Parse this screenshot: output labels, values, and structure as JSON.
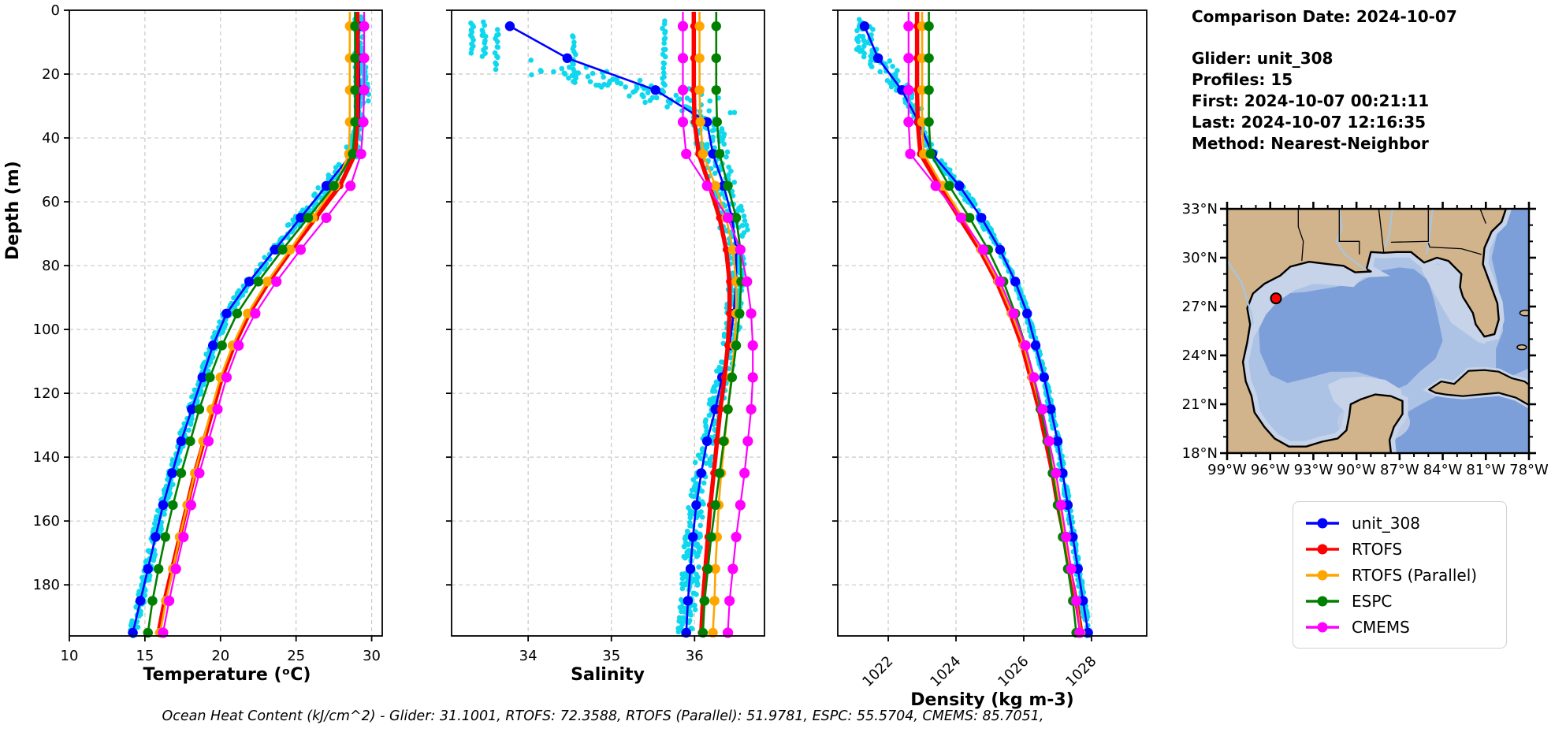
{
  "info": {
    "comparison_date": "Comparison Date: 2024-10-07",
    "lines": [
      "Glider: unit_308",
      "Profiles: 15",
      "First: 2024-10-07 00:21:11",
      "Last: 2024-10-07 12:16:35",
      "Method: Nearest-Neighbor"
    ]
  },
  "footnote": "Ocean Heat Content (kJ/cm^2) - Glider: 31.1001,  RTOFS: 72.3588,  RTOFS (Parallel): 51.9781,  ESPC: 55.5704,  CMEMS: 85.7051,",
  "axes": {
    "ylabel": "Depth (m)"
  },
  "colors": {
    "unit_308": "#0000ff",
    "RTOFS": "#ff0000",
    "RTOFS (Parallel)": "#ffa500",
    "ESPC": "#008000",
    "CMEMS": "#ff00ff",
    "raw_scatter": "#0fd8ee",
    "grid": "#c8c8c8",
    "spine": "#000000"
  },
  "legend": {
    "entries": [
      {
        "label": "unit_308",
        "color": "#0000ff"
      },
      {
        "label": "RTOFS",
        "color": "#ff0000"
      },
      {
        "label": "RTOFS (Parallel)",
        "color": "#ffa500"
      },
      {
        "label": "ESPC",
        "color": "#008000"
      },
      {
        "label": "CMEMS",
        "color": "#ff00ff"
      }
    ]
  },
  "chart_data": [
    {
      "type": "line",
      "xlabel": "Temperature (ᵒC)",
      "ylabel": "Depth (m)",
      "xlim": [
        10,
        30.7
      ],
      "ylim": [
        0,
        196
      ],
      "xticks": [
        10,
        15,
        20,
        25,
        30
      ],
      "yticks": [
        0,
        20,
        40,
        60,
        80,
        100,
        120,
        140,
        160,
        180
      ],
      "xtick_rotation": 0,
      "show_y_tick_labels": true,
      "depths": [
        5,
        15,
        25,
        35,
        45,
        55,
        65,
        75,
        85,
        95,
        105,
        115,
        125,
        135,
        145,
        155,
        165,
        175,
        185,
        195
      ],
      "series": [
        {
          "name": "unit_308",
          "values": [
            29.15,
            29.15,
            29.2,
            29.15,
            28.7,
            27.0,
            25.3,
            23.6,
            21.9,
            20.4,
            19.5,
            18.8,
            18.1,
            17.4,
            16.8,
            16.2,
            15.7,
            15.2,
            14.7,
            14.2
          ]
        },
        {
          "name": "RTOFS",
          "values": [
            29.05,
            29.05,
            29.05,
            29.05,
            28.9,
            27.9,
            26.3,
            24.7,
            23.2,
            21.9,
            20.9,
            20.1,
            19.5,
            18.9,
            18.3,
            17.8,
            17.3,
            16.8,
            16.3,
            15.9
          ]
        },
        {
          "name": "RTOFS (Parallel)",
          "values": [
            28.55,
            28.55,
            28.55,
            28.55,
            28.5,
            27.6,
            26.1,
            24.6,
            23.1,
            21.8,
            20.8,
            20.0,
            19.4,
            18.85,
            18.3,
            17.8,
            17.3,
            16.85,
            16.4,
            16.0
          ]
        },
        {
          "name": "ESPC",
          "values": [
            28.9,
            28.9,
            28.9,
            28.9,
            28.75,
            27.5,
            25.8,
            24.1,
            22.5,
            21.1,
            20.1,
            19.3,
            18.6,
            18.0,
            17.4,
            16.85,
            16.35,
            15.9,
            15.5,
            15.2
          ]
        },
        {
          "name": "CMEMS",
          "values": [
            29.5,
            29.5,
            29.5,
            29.45,
            29.3,
            28.6,
            27.0,
            25.3,
            23.7,
            22.3,
            21.2,
            20.4,
            19.8,
            19.2,
            18.6,
            18.05,
            17.55,
            17.05,
            16.6,
            16.2
          ]
        }
      ],
      "raw_scatter": {
        "band": {
          "half": 0.27,
          "half_wide": 0.5,
          "wide_range": [
            40,
            68
          ],
          "dmin": 2,
          "dmax": 196,
          "count": 640
        },
        "streaks": [],
        "clouds": [
          {
            "from": [
              29.35,
              14
            ],
            "to": [
              29.75,
              30
            ],
            "n": 26,
            "jx": 0.12,
            "jd": 3
          }
        ]
      }
    },
    {
      "type": "line",
      "xlabel": "Salinity",
      "ylabel": "Depth (m)",
      "xlim": [
        33.08,
        36.84
      ],
      "ylim": [
        0,
        196
      ],
      "xticks": [
        34,
        35,
        36
      ],
      "yticks": [
        0,
        20,
        40,
        60,
        80,
        100,
        120,
        140,
        160,
        180
      ],
      "xtick_rotation": 0,
      "show_y_tick_labels": false,
      "depths": [
        5,
        15,
        25,
        35,
        45,
        55,
        65,
        75,
        85,
        95,
        105,
        115,
        125,
        135,
        145,
        155,
        165,
        175,
        185,
        195
      ],
      "series": [
        {
          "name": "unit_308",
          "values": [
            33.78,
            34.47,
            35.53,
            36.15,
            36.22,
            36.35,
            36.45,
            36.5,
            36.5,
            36.47,
            36.42,
            36.33,
            36.25,
            36.15,
            36.08,
            36.02,
            35.98,
            35.95,
            35.92,
            35.9
          ]
        },
        {
          "name": "RTOFS",
          "values": [
            35.99,
            35.99,
            35.99,
            36.0,
            36.05,
            36.18,
            36.3,
            36.38,
            36.42,
            36.42,
            36.4,
            36.36,
            36.31,
            36.27,
            36.23,
            36.19,
            36.16,
            36.13,
            36.1,
            36.08
          ]
        },
        {
          "name": "RTOFS (Parallel)",
          "values": [
            36.06,
            36.06,
            36.06,
            36.07,
            36.1,
            36.25,
            36.38,
            36.46,
            36.5,
            36.5,
            36.48,
            36.44,
            36.4,
            36.36,
            36.32,
            36.29,
            36.27,
            36.25,
            36.24,
            36.22
          ]
        },
        {
          "name": "ESPC",
          "values": [
            36.26,
            36.26,
            36.26,
            36.27,
            36.3,
            36.4,
            36.5,
            36.55,
            36.56,
            36.54,
            36.5,
            36.45,
            36.4,
            36.35,
            36.3,
            36.25,
            36.2,
            36.16,
            36.12,
            36.1
          ]
        },
        {
          "name": "CMEMS",
          "values": [
            35.86,
            35.86,
            35.86,
            35.86,
            35.9,
            36.15,
            36.4,
            36.55,
            36.63,
            36.68,
            36.7,
            36.7,
            36.68,
            36.64,
            36.6,
            36.55,
            36.5,
            36.46,
            36.42,
            36.4
          ]
        }
      ],
      "raw_scatter": {
        "band": {
          "half": 0.1,
          "half_wide": 0.18,
          "wide_range": [
            34,
            70
          ],
          "dmin": 30,
          "dmax": 196,
          "count": 520
        },
        "streaks": [
          {
            "x": 33.33,
            "d": [
              4,
              13
            ],
            "n": 12
          },
          {
            "x": 33.47,
            "d": [
              4,
              14
            ],
            "n": 12
          },
          {
            "x": 33.62,
            "d": [
              6,
              18
            ],
            "n": 13
          },
          {
            "x": 34.55,
            "d": [
              8,
              23
            ],
            "n": 16
          },
          {
            "x": 35.63,
            "d": [
              3,
              26
            ],
            "n": 22
          }
        ],
        "clouds": [
          {
            "from": [
              34.1,
              17
            ],
            "to": [
              36.35,
              31
            ],
            "n": 75,
            "jx": 0.28,
            "jd": 2.6
          }
        ]
      }
    },
    {
      "type": "line",
      "xlabel": "Density (kg m-3)",
      "ylabel": "Depth (m)",
      "xlim": [
        1020.51,
        1029.63
      ],
      "ylim": [
        0,
        196
      ],
      "xticks": [
        1022,
        1024,
        1026,
        1028
      ],
      "yticks": [
        0,
        20,
        40,
        60,
        80,
        100,
        120,
        140,
        160,
        180
      ],
      "xtick_rotation": 45,
      "show_y_tick_labels": false,
      "depths": [
        5,
        15,
        25,
        35,
        45,
        55,
        65,
        75,
        85,
        95,
        105,
        115,
        125,
        135,
        145,
        155,
        165,
        175,
        185,
        195
      ],
      "series": [
        {
          "name": "unit_308",
          "values": [
            1021.3,
            1021.7,
            1022.4,
            1022.9,
            1023.3,
            1024.1,
            1024.75,
            1025.3,
            1025.75,
            1026.1,
            1026.35,
            1026.6,
            1026.8,
            1027.0,
            1027.15,
            1027.3,
            1027.45,
            1027.6,
            1027.75,
            1027.9
          ]
        },
        {
          "name": "RTOFS",
          "values": [
            1022.85,
            1022.85,
            1022.85,
            1022.87,
            1022.95,
            1023.5,
            1024.1,
            1024.7,
            1025.2,
            1025.6,
            1025.95,
            1026.2,
            1026.45,
            1026.65,
            1026.85,
            1027.0,
            1027.2,
            1027.35,
            1027.55,
            1027.7
          ]
        },
        {
          "name": "RTOFS (Parallel)",
          "values": [
            1023.0,
            1023.0,
            1023.0,
            1023.0,
            1023.05,
            1023.6,
            1024.2,
            1024.75,
            1025.25,
            1025.65,
            1026.0,
            1026.25,
            1026.5,
            1026.7,
            1026.88,
            1027.05,
            1027.22,
            1027.38,
            1027.55,
            1027.68
          ]
        },
        {
          "name": "ESPC",
          "values": [
            1023.2,
            1023.2,
            1023.2,
            1023.2,
            1023.25,
            1023.8,
            1024.4,
            1024.95,
            1025.4,
            1025.75,
            1026.05,
            1026.3,
            1026.5,
            1026.7,
            1026.85,
            1027.0,
            1027.15,
            1027.3,
            1027.45,
            1027.55
          ]
        },
        {
          "name": "CMEMS",
          "values": [
            1022.6,
            1022.6,
            1022.6,
            1022.6,
            1022.65,
            1023.4,
            1024.15,
            1024.8,
            1025.3,
            1025.7,
            1026.05,
            1026.3,
            1026.55,
            1026.75,
            1026.95,
            1027.1,
            1027.25,
            1027.4,
            1027.55,
            1027.65
          ]
        }
      ],
      "raw_scatter": {
        "band": {
          "half": 0.07,
          "half_wide": 0.12,
          "wide_range": [
            40,
            70
          ],
          "dmin": 30,
          "dmax": 196,
          "count": 520
        },
        "streaks": [
          {
            "x": 1021.12,
            "d": [
              3,
              13
            ],
            "n": 12
          },
          {
            "x": 1021.28,
            "d": [
              4,
              15
            ],
            "n": 10
          },
          {
            "x": 1021.5,
            "d": [
              5,
              18
            ],
            "n": 12
          }
        ],
        "clouds": [
          {
            "from": [
              1021.5,
              12
            ],
            "to": [
              1022.95,
              32
            ],
            "n": 60,
            "jx": 0.12,
            "jd": 2.4
          }
        ]
      }
    }
  ],
  "map": {
    "lat_tick_labels": [
      "33°N",
      "30°N",
      "27°N",
      "24°N",
      "21°N",
      "18°N"
    ],
    "lon_tick_labels": [
      "99°W",
      "96°W",
      "93°W",
      "90°W",
      "87°W",
      "84°W",
      "81°W",
      "78°W"
    ],
    "lat_ticks": [
      33,
      30,
      27,
      24,
      21,
      18
    ],
    "lon_ticks": [
      -99,
      -96,
      -93,
      -90,
      -87,
      -84,
      -81,
      -78
    ],
    "extent": {
      "lon_min": -99,
      "lon_max": -78,
      "lat_min": 18,
      "lat_max": 33
    },
    "glider_marker": {
      "lon": -95.6,
      "lat": 27.5,
      "color": "#ff0000"
    },
    "colors": {
      "land": "#d2b48c",
      "coast": "#000000",
      "shelf": "#c6d3e8",
      "ocean_mid": "#adc3e6",
      "ocean_deep": "#7d9fd9",
      "pale_patch": "#bcc9e4",
      "river": "#a3c7e8"
    }
  }
}
